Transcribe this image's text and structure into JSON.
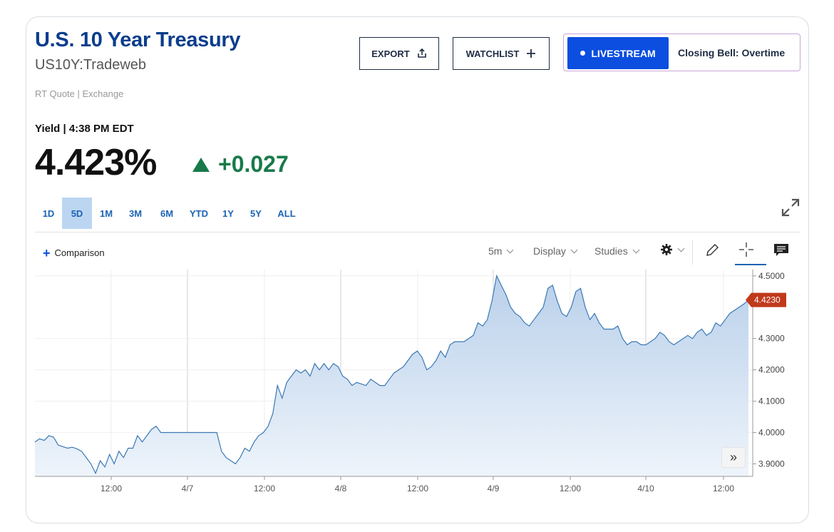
{
  "header": {
    "title": "U.S. 10 Year Treasury",
    "symbol": "US10Y:Tradeweb",
    "quote_type": "RT Quote | Exchange"
  },
  "actions": {
    "export_label": "EXPORT",
    "watchlist_label": "WATCHLIST",
    "livestream_label": "LIVESTREAM",
    "livestream_show": "Closing Bell: Overtime"
  },
  "quote": {
    "yield_label": "Yield |",
    "time": "4:38 PM EDT",
    "price": "4.423%",
    "change": "+0.027",
    "up_color": "#187a4a"
  },
  "ranges": [
    {
      "label": "1D",
      "active": false
    },
    {
      "label": "5D",
      "active": true
    },
    {
      "label": "1M",
      "active": false
    },
    {
      "label": "3M",
      "active": false
    },
    {
      "label": "6M",
      "active": false
    },
    {
      "label": "YTD",
      "active": false
    },
    {
      "label": "1Y",
      "active": false
    },
    {
      "label": "5Y",
      "active": false
    },
    {
      "label": "ALL",
      "active": false
    }
  ],
  "toolbar": {
    "comparison_label": "Comparison",
    "interval_label": "5m",
    "display_label": "Display",
    "studies_label": "Studies"
  },
  "chart_data": {
    "type": "area",
    "x_tick_labels": [
      "12:00",
      "4/7",
      "12:00",
      "4/8",
      "12:00",
      "4/9",
      "12:00",
      "4/10",
      "12:00"
    ],
    "y_tick_labels": [
      "4.5000",
      "4.3000",
      "4.2000",
      "4.1000",
      "4.0000",
      "3.9000"
    ],
    "ylim": [
      3.86,
      4.52
    ],
    "last_value_label": "4.4230",
    "last_value": 4.423,
    "line_color": "#3a78b5",
    "fill_color": "#c5d9ee",
    "marker_color": "#c0391b",
    "series": [
      {
        "values": [
          3.97,
          3.98,
          3.975,
          3.99,
          3.985,
          3.96,
          3.955,
          3.95,
          3.953,
          3.948,
          3.94,
          3.92,
          3.9,
          3.87,
          3.91,
          3.89,
          3.93,
          3.9,
          3.94,
          3.92,
          3.95,
          3.95,
          3.99,
          3.97,
          3.99,
          4.01,
          4.02,
          4.0,
          4.0,
          4.0,
          4.0,
          4.0,
          4.0,
          4.0,
          4.0,
          4.0,
          4.0,
          4.0,
          4.0,
          4.0,
          3.94,
          3.92,
          3.91,
          3.9,
          3.92,
          3.95,
          3.94,
          3.97,
          3.99,
          4.0,
          4.02,
          4.06,
          4.15,
          4.11,
          4.16,
          4.18,
          4.2,
          4.19,
          4.2,
          4.18,
          4.22,
          4.2,
          4.22,
          4.2,
          4.22,
          4.21,
          4.18,
          4.17,
          4.15,
          4.16,
          4.155,
          4.15,
          4.17,
          4.16,
          4.15,
          4.15,
          4.17,
          4.19,
          4.2,
          4.21,
          4.23,
          4.25,
          4.26,
          4.24,
          4.2,
          4.21,
          4.23,
          4.26,
          4.24,
          4.28,
          4.29,
          4.29,
          4.29,
          4.3,
          4.31,
          4.35,
          4.34,
          4.36,
          4.42,
          4.5,
          4.47,
          4.44,
          4.4,
          4.38,
          4.37,
          4.35,
          4.34,
          4.36,
          4.38,
          4.4,
          4.46,
          4.47,
          4.42,
          4.38,
          4.37,
          4.4,
          4.45,
          4.46,
          4.4,
          4.36,
          4.38,
          4.35,
          4.33,
          4.33,
          4.33,
          4.34,
          4.3,
          4.28,
          4.29,
          4.29,
          4.28,
          4.28,
          4.29,
          4.3,
          4.32,
          4.31,
          4.29,
          4.28,
          4.29,
          4.3,
          4.31,
          4.3,
          4.32,
          4.33,
          4.31,
          4.32,
          4.35,
          4.34,
          4.36,
          4.38,
          4.39,
          4.4,
          4.41,
          4.423
        ]
      }
    ]
  }
}
